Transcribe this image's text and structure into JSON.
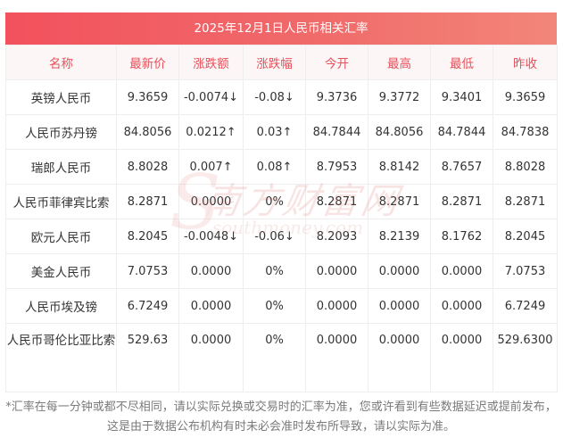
{
  "title": "2025年12月1日人民币相关汇率",
  "headers": [
    "名称",
    "最新价",
    "涨跌额",
    "涨跌幅",
    "今开",
    "最高",
    "最低",
    "昨收"
  ],
  "rows": [
    {
      "name": "英镑人民币",
      "latest": "9.3659",
      "change": "-0.0074↓",
      "pct": "-0.08↓",
      "open": "9.3736",
      "high": "9.3772",
      "low": "9.3401",
      "prev": "9.3659",
      "trend": "down"
    },
    {
      "name": "人民币苏丹镑",
      "latest": "84.8056",
      "change": "0.0212↑",
      "pct": "0.03↑",
      "open": "84.7844",
      "high": "84.8056",
      "low": "84.7844",
      "prev": "84.7838",
      "trend": "up"
    },
    {
      "name": "瑞郎人民币",
      "latest": "8.8028",
      "change": "0.007↑",
      "pct": "0.08↑",
      "open": "8.7953",
      "high": "8.8142",
      "low": "8.7657",
      "prev": "8.8028",
      "trend": "up"
    },
    {
      "name": "人民币菲律宾比索",
      "latest": "8.2871",
      "change": "0.0000",
      "pct": "0%",
      "open": "8.2871",
      "high": "8.2871",
      "low": "8.2871",
      "prev": "8.2871",
      "trend": "flat"
    },
    {
      "name": "欧元人民币",
      "latest": "8.2045",
      "change": "-0.0048↓",
      "pct": "-0.06↓",
      "open": "8.2093",
      "high": "8.2139",
      "low": "8.1762",
      "prev": "8.2045",
      "trend": "down"
    },
    {
      "name": "美金人民币",
      "latest": "7.0753",
      "change": "0.0000",
      "pct": "0%",
      "open": "0.0000",
      "high": "0.0000",
      "low": "0.0000",
      "prev": "7.0753",
      "trend": "flat"
    },
    {
      "name": "人民币埃及镑",
      "latest": "6.7249",
      "change": "0.0000",
      "pct": "0%",
      "open": "0.0000",
      "high": "0.0000",
      "low": "0.0000",
      "prev": "6.7249",
      "trend": "flat"
    },
    {
      "name": "人民币哥伦比亚比索",
      "latest": "529.63",
      "change": "0.0000",
      "pct": "0%",
      "open": "0.0000",
      "high": "0.0000",
      "low": "0.0000",
      "prev": "529.6300",
      "trend": "flat"
    }
  ],
  "watermark": {
    "cn": "南方财富网",
    "en": "southmoney.com",
    "letter": "S"
  },
  "footnote": "*汇率在每一分钟或都不尽相同，请以实际兑换或交易时的汇率为准，您或许看到有些数据延迟或提前发布，这是由于数据公布机构有时未必会准时发布所导致，请以实际为准。",
  "colors": {
    "accent": "#f2515d",
    "up": "#e8262c",
    "down": "#2a9a2a"
  }
}
